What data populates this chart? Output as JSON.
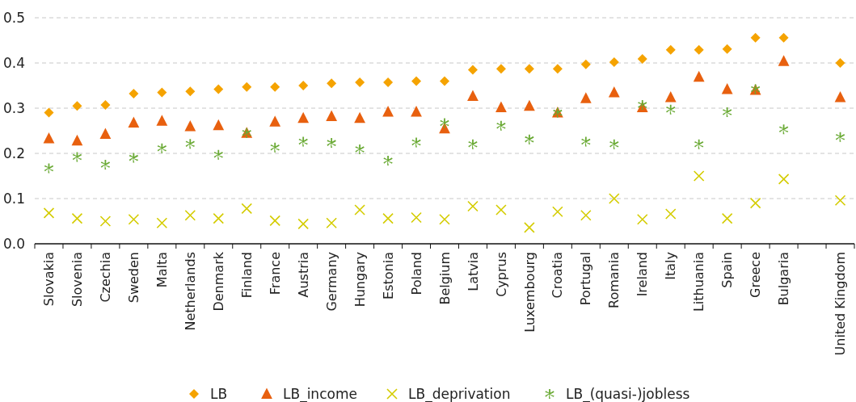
{
  "chart_data": {
    "type": "scatter",
    "categories": [
      "Slovakia",
      "Slovenia",
      "Czechia",
      "Sweden",
      "Malta",
      "Netherlands",
      "Denmark",
      "Finland",
      "France",
      "Austria",
      "Germany",
      "Hungary",
      "Estonia",
      "Poland",
      "Belgium",
      "Latvia",
      "Cyprus",
      "Luxembourg",
      "Croatia",
      "Portugal",
      "Romania",
      "Ireland",
      "Italy",
      "Lithuania",
      "Spain",
      "Greece",
      "Bulgaria",
      null,
      "United Kingdom"
    ],
    "series": [
      {
        "name": "LB",
        "color": "#f5a300",
        "marker": "diamond",
        "values": [
          0.29,
          0.305,
          0.307,
          0.332,
          0.335,
          0.337,
          0.342,
          0.347,
          0.347,
          0.35,
          0.355,
          0.357,
          0.357,
          0.36,
          0.36,
          0.385,
          0.387,
          0.387,
          0.387,
          0.397,
          0.402,
          0.409,
          0.429,
          0.429,
          0.431,
          0.456,
          0.456,
          null,
          0.4
        ]
      },
      {
        "name": "LB_income",
        "color": "#e8600f",
        "marker": "triangle",
        "values": [
          0.233,
          0.228,
          0.243,
          0.268,
          0.272,
          0.26,
          0.262,
          0.245,
          0.27,
          0.278,
          0.282,
          0.278,
          0.292,
          0.292,
          0.255,
          0.327,
          0.302,
          0.305,
          0.29,
          0.322,
          0.335,
          0.302,
          0.324,
          0.369,
          0.342,
          0.34,
          0.404,
          null,
          0.324
        ]
      },
      {
        "name": "LB_deprivation",
        "color": "#d4cc00",
        "marker": "cross",
        "values": [
          0.068,
          0.056,
          0.05,
          0.054,
          0.046,
          0.063,
          0.056,
          0.078,
          0.051,
          0.044,
          0.046,
          0.075,
          0.056,
          0.058,
          0.054,
          0.083,
          0.075,
          0.036,
          0.071,
          0.063,
          0.1,
          0.054,
          0.066,
          0.15,
          0.056,
          0.09,
          0.143,
          null,
          0.096
        ]
      },
      {
        "name": "LB_(quasi-)jobless",
        "color": "#6aaa35",
        "marker": "star",
        "values": [
          0.167,
          0.192,
          0.175,
          0.19,
          0.211,
          0.221,
          0.197,
          0.245,
          0.213,
          0.226,
          0.223,
          0.209,
          0.184,
          0.224,
          0.267,
          0.22,
          0.261,
          0.231,
          0.29,
          0.226,
          0.22,
          0.307,
          0.297,
          0.22,
          0.291,
          0.342,
          0.253,
          null,
          0.236
        ]
      }
    ],
    "ylim": [
      0,
      0.5
    ],
    "yticks": [
      {
        "value": 0,
        "label": "0.0"
      },
      0.1,
      0.2,
      0.3,
      0.4,
      0.5
    ],
    "grid": "y",
    "legend": "bottom"
  }
}
